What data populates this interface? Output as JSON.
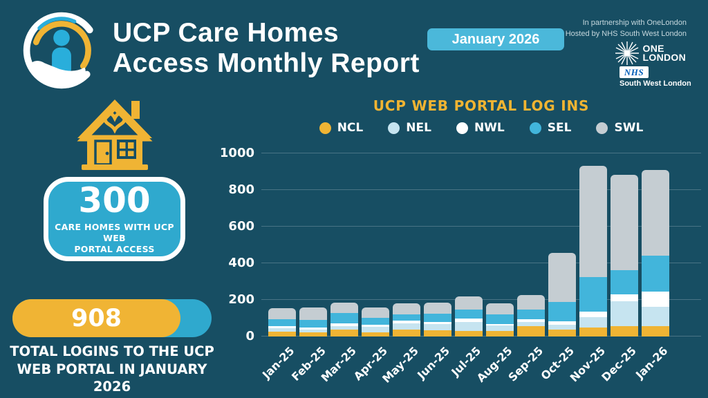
{
  "header": {
    "title_line1": "UCP Care Homes",
    "title_line2": "Access Monthly Report",
    "period_badge": "January 2026",
    "partnership_line1": "In partnership with OneLondon",
    "partnership_line2": "Hosted by NHS South West London",
    "onelondon_logo_line1": "ONE",
    "onelondon_logo_line2": "LONDON",
    "nhs_logo_text": "NHS",
    "nhs_region": "South West London"
  },
  "stats": {
    "care_homes": {
      "value": "300",
      "lines": [
        "CARE HOMES WITH UCP WEB",
        "PORTAL ACCESS"
      ]
    },
    "total_logins": {
      "value": "908",
      "lines": [
        "TOTAL LOGINS TO THE UCP",
        "WEB PORTAL IN JANUARY",
        "2026"
      ]
    }
  },
  "chart_data": {
    "type": "bar",
    "stacked": true,
    "title": "UCP WEB PORTAL LOG INS",
    "categories": [
      "Jan-25",
      "Feb-25",
      "Mar-25",
      "Apr-25",
      "May-25",
      "Jun-25",
      "Jul-25",
      "Aug-25",
      "Sep-25",
      "Oct-25",
      "Nov-25",
      "Dec-25",
      "Jan-26"
    ],
    "series": [
      {
        "name": "NCL",
        "color": "#F0B434",
        "values": [
          28,
          24,
          38,
          24,
          36,
          33,
          30,
          29,
          55,
          38,
          48,
          56,
          55
        ]
      },
      {
        "name": "NEL",
        "color": "#C6E4F0",
        "values": [
          16,
          14,
          19,
          28,
          35,
          34,
          50,
          31,
          25,
          25,
          56,
          138,
          108
        ]
      },
      {
        "name": "NWL",
        "color": "#FFFFFF",
        "values": [
          11,
          12,
          14,
          14,
          16,
          14,
          18,
          10,
          15,
          20,
          31,
          35,
          80
        ]
      },
      {
        "name": "SEL",
        "color": "#42B5DB",
        "values": [
          38,
          40,
          58,
          38,
          36,
          45,
          49,
          52,
          53,
          105,
          191,
          131,
          197
        ]
      },
      {
        "name": "SWL",
        "color": "#C5CDD2",
        "values": [
          62,
          68,
          57,
          56,
          59,
          60,
          73,
          61,
          77,
          270,
          606,
          522,
          468
        ]
      }
    ],
    "totals": [
      155,
      158,
      186,
      160,
      182,
      186,
      220,
      183,
      225,
      458,
      932,
      882,
      908
    ],
    "ylabel": "",
    "xlabel": "",
    "ylim": [
      0,
      1000
    ],
    "yticks": [
      0,
      200,
      400,
      600,
      800,
      1000
    ],
    "grid": true,
    "legend_position": "top"
  },
  "colors": {
    "background": "#174E63",
    "accent_yellow": "#F0B434",
    "accent_teal": "#2FA9CE",
    "badge_blue": "#4BB8DA",
    "gridline": "rgba(255,255,255,0.22)",
    "nhs_blue": "#005EB8",
    "person_blue": "#29AEDB"
  }
}
